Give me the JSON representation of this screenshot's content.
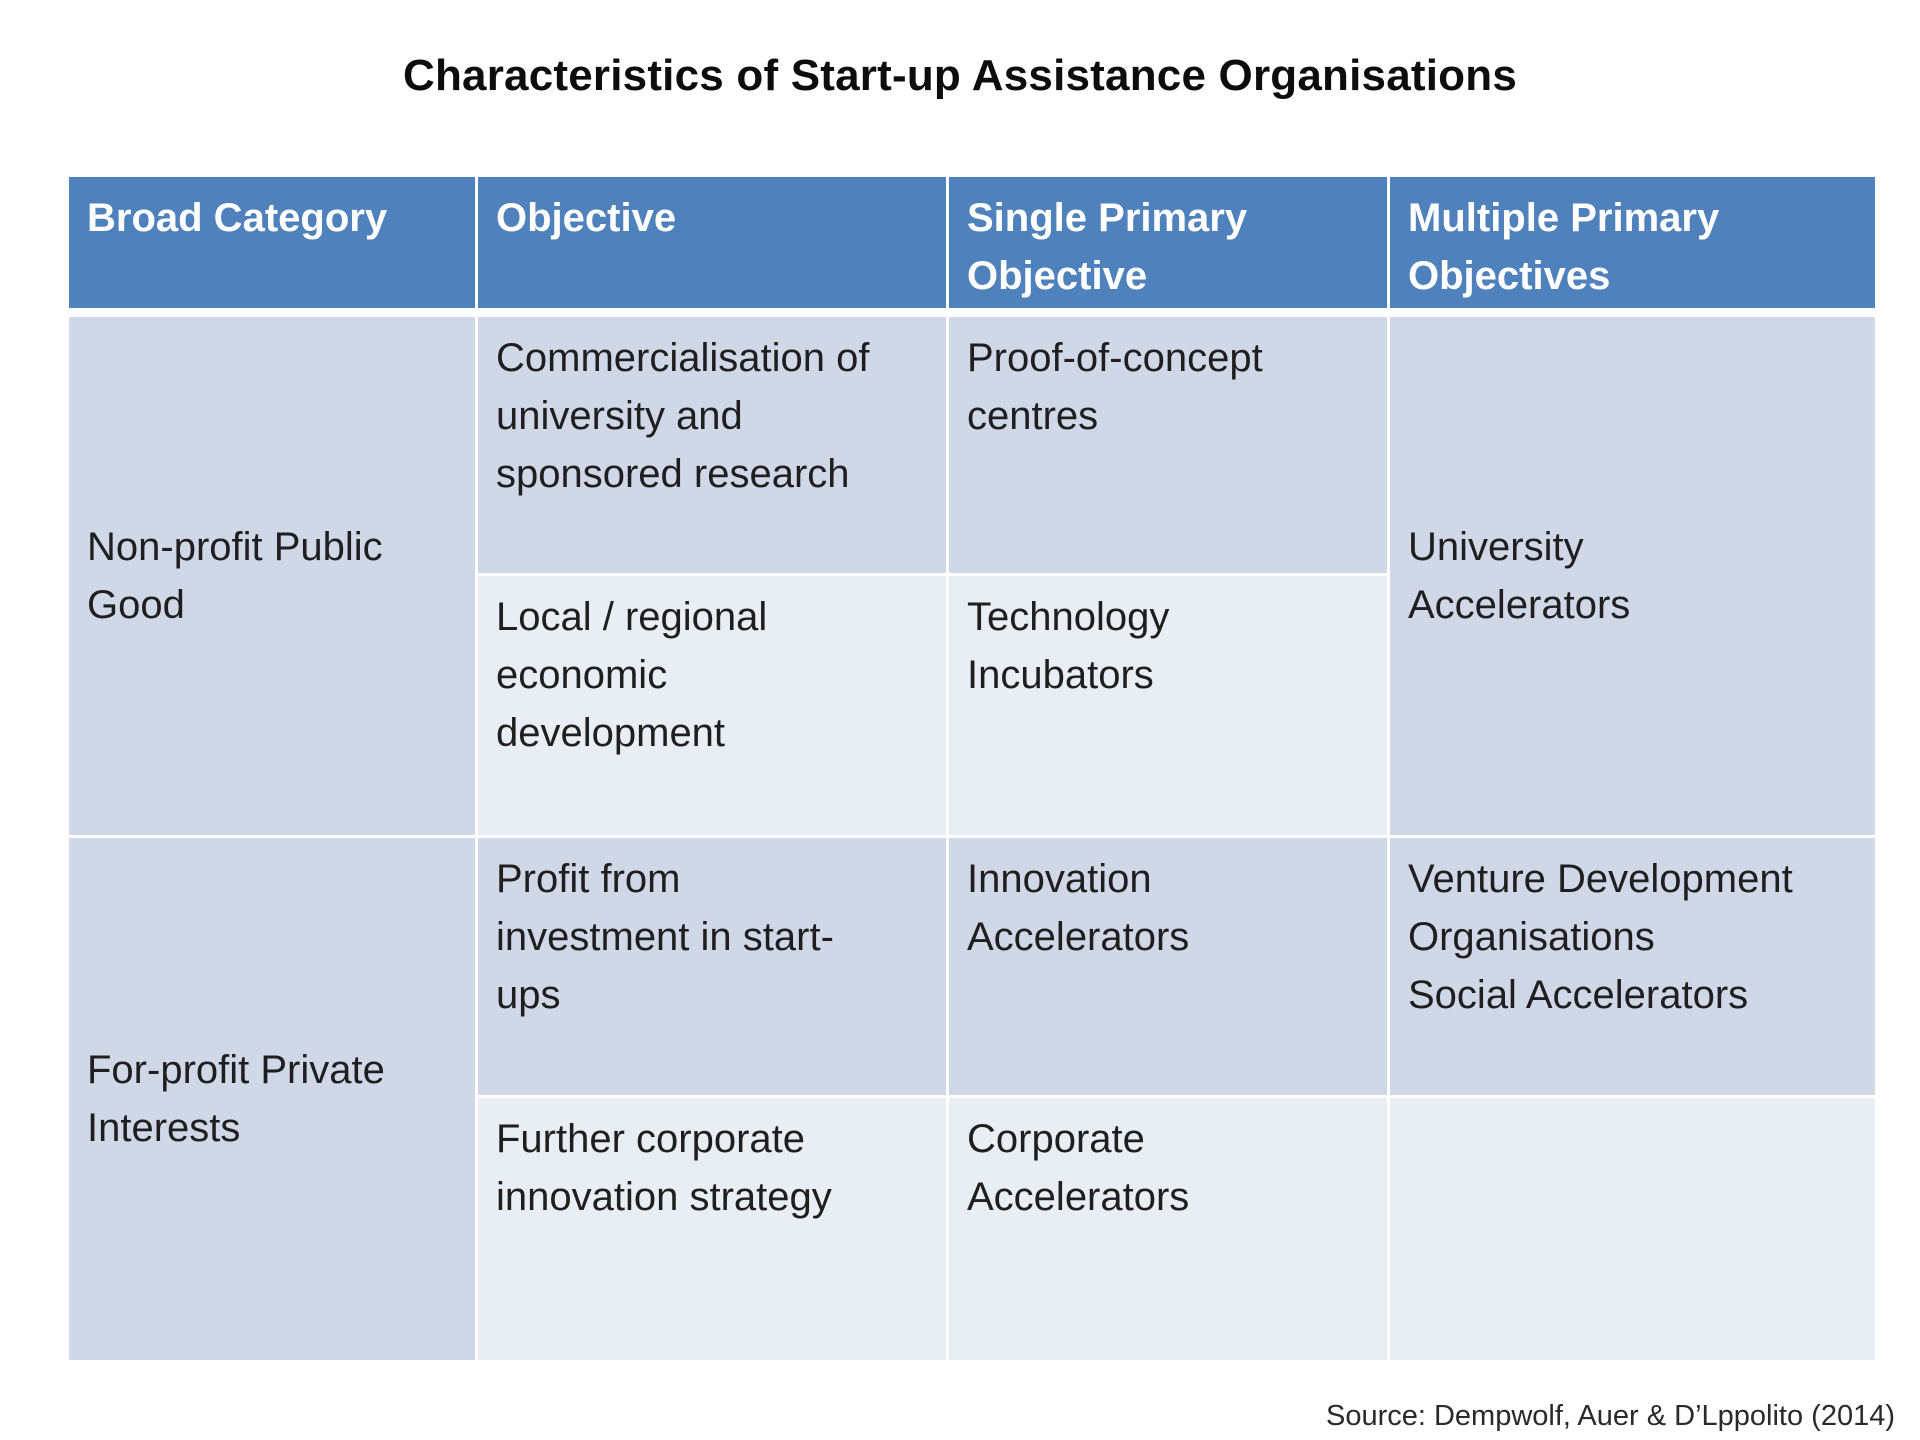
{
  "title": "Characteristics of Start-up Assistance Organisations",
  "headers": {
    "broad_category": "Broad Category",
    "objective": "Objective",
    "single_primary": [
      "Single Primary",
      "Objective"
    ],
    "multiple_primary": [
      "Multiple Primary",
      "Objectives"
    ]
  },
  "rows": {
    "nonprofit": {
      "category": [
        "Non-profit Public",
        "Good"
      ],
      "sub1": {
        "objective": [
          "Commercialisation of",
          "university and",
          "sponsored research"
        ],
        "single": [
          "Proof-of-concept",
          "centres"
        ]
      },
      "sub2": {
        "objective": [
          "Local / regional",
          "economic",
          "development"
        ],
        "single": [
          "Technology",
          "Incubators"
        ]
      },
      "multiple": [
        "University",
        "Accelerators"
      ]
    },
    "forprofit": {
      "category": [
        "For-profit Private",
        "Interests"
      ],
      "sub1": {
        "objective": [
          "Profit from",
          "investment in start-",
          "ups"
        ],
        "single": [
          "Innovation",
          "Accelerators"
        ],
        "multiple": [
          "Venture Development",
          "Organisations",
          "Social Accelerators"
        ]
      },
      "sub2": {
        "objective": [
          "Further corporate",
          "innovation strategy"
        ],
        "single": [
          "Corporate",
          "Accelerators"
        ],
        "multiple": ""
      }
    }
  },
  "source": "Source: Dempwolf, Auer & D’Lppolito (2014)",
  "colors": {
    "header_bg": "#4f81bd",
    "band_dark": "#d0d8e8",
    "band_light": "#e9edf4",
    "header_text": "#ffffff"
  }
}
